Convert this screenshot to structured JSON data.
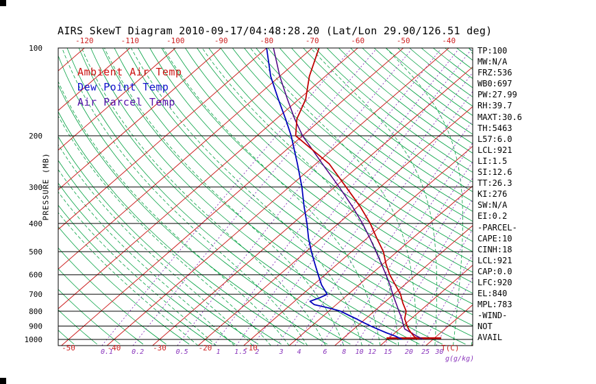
{
  "title": "AIRS SkewT Diagram 2010-09-17/04:48:28.20 (Lat/Lon 29.90/126.51 deg)",
  "axes": {
    "pressure_label": "PRESSURE (MB)",
    "pressure_ticks": [
      100,
      200,
      300,
      400,
      500,
      600,
      700,
      800,
      900,
      1000
    ],
    "top_temp_ticks": [
      -120,
      -110,
      -100,
      -90,
      -80,
      -70,
      -60,
      -50,
      -40
    ],
    "bottom_temp_ticks": [
      -50,
      -40,
      -30,
      -20,
      -10
    ],
    "bottom_temp_unit": "T(C)",
    "mixing_ratio_ticks": [
      0.1,
      0.2,
      0.5,
      1,
      1.5,
      2,
      3,
      4,
      6,
      8,
      10,
      12,
      15,
      20,
      25,
      30
    ],
    "mixing_ratio_unit": "g(g/kg)"
  },
  "legend": [
    {
      "label": "Ambient Air Temp",
      "color": "#cc1111"
    },
    {
      "label": "Dew Point Temp",
      "color": "#1111cc"
    },
    {
      "label": "Air Parcel Temp",
      "color": "#5511aa"
    }
  ],
  "stats": [
    "TP:100",
    "MW:N/A",
    "FRZ:536",
    "WB0:697",
    "PW:27.99",
    "RH:39.7",
    "MAXT:30.6",
    "TH:5463",
    "L57:6.0",
    "LCL:921",
    "LI:1.5",
    "SI:12.6",
    "TT:26.3",
    "KI:276",
    "SW:N/A",
    "EI:0.2",
    "-PARCEL-",
    "CAPE:10",
    "CINH:18",
    "LCL:921",
    "CAP:0.0",
    "LFC:920",
    "EL:840",
    "MPL:783",
    "-WIND-",
    "NOT",
    "AVAIL"
  ],
  "colors": {
    "ambient": "#c00000",
    "dew_point": "#0000bb",
    "parcel": "#4b0082",
    "isotherm": "#cc2020",
    "adiabat": "#00a040",
    "mixing_ratio": "#8833bb",
    "axis": "#000000",
    "background": "#ffffff"
  },
  "chart_data": {
    "type": "line",
    "title": "AIRS SkewT Diagram 2010-09-17/04:48:28.20 (Lat/Lon 29.90/126.51 deg)",
    "x_axis": {
      "label": "T(C)",
      "projection": "skew-t (45 deg isotherms)",
      "top_ticks": [
        -120,
        -110,
        -100,
        -90,
        -80,
        -70,
        -60,
        -50,
        -40
      ],
      "bottom_ticks": [
        -50,
        -40,
        -30,
        -20,
        -10
      ]
    },
    "y_axis": {
      "label": "PRESSURE (MB)",
      "scale": "log",
      "ticks": [
        100,
        200,
        300,
        400,
        500,
        600,
        700,
        800,
        900,
        1000
      ],
      "range": [
        100,
        1050
      ]
    },
    "mixing_ratio_lines_g_per_kg": [
      0.1,
      0.2,
      0.5,
      1,
      1.5,
      2,
      3,
      4,
      6,
      8,
      10,
      12,
      15,
      20,
      25,
      30
    ],
    "surface_line": {
      "pressure": 990,
      "t_min": 19.5,
      "t_max": 31.5
    },
    "series": [
      {
        "name": "Ambient Air Temp",
        "color": "#c00000",
        "points_p_t": [
          [
            1000,
            26.8
          ],
          [
            975,
            25.0
          ],
          [
            950,
            23.6
          ],
          [
            925,
            22.2
          ],
          [
            900,
            21.0
          ],
          [
            850,
            18.6
          ],
          [
            800,
            17.0
          ],
          [
            750,
            14.2
          ],
          [
            700,
            11.5
          ],
          [
            650,
            8.0
          ],
          [
            600,
            4.2
          ],
          [
            550,
            0.6
          ],
          [
            500,
            -3.0
          ],
          [
            450,
            -7.8
          ],
          [
            400,
            -13.0
          ],
          [
            350,
            -19.5
          ],
          [
            300,
            -27.5
          ],
          [
            250,
            -37.0
          ],
          [
            200,
            -51.5
          ],
          [
            175,
            -55.5
          ],
          [
            150,
            -58.5
          ],
          [
            125,
            -63.5
          ],
          [
            100,
            -68.5
          ]
        ]
      },
      {
        "name": "Dew Point Temp",
        "color": "#0000bb",
        "points_p_t": [
          [
            1000,
            23.2
          ],
          [
            975,
            21.0
          ],
          [
            950,
            18.2
          ],
          [
            925,
            15.6
          ],
          [
            900,
            13.0
          ],
          [
            875,
            10.5
          ],
          [
            850,
            8.0
          ],
          [
            825,
            5.3
          ],
          [
            800,
            2.6
          ],
          [
            780,
            -0.8
          ],
          [
            760,
            -4.8
          ],
          [
            740,
            -6.6
          ],
          [
            720,
            -5.4
          ],
          [
            700,
            -4.6
          ],
          [
            650,
            -8.2
          ],
          [
            600,
            -11.5
          ],
          [
            550,
            -15.0
          ],
          [
            500,
            -18.8
          ],
          [
            450,
            -22.8
          ],
          [
            400,
            -26.9
          ],
          [
            350,
            -31.8
          ],
          [
            300,
            -37.2
          ],
          [
            250,
            -44.0
          ],
          [
            200,
            -52.5
          ],
          [
            175,
            -58.0
          ],
          [
            150,
            -64.5
          ],
          [
            125,
            -72.0
          ],
          [
            100,
            -80.0
          ]
        ]
      },
      {
        "name": "Air Parcel Temp",
        "color": "#4b0082",
        "points_p_t": [
          [
            1000,
            27.8
          ],
          [
            975,
            25.7
          ],
          [
            950,
            23.6
          ],
          [
            921,
            21.2
          ],
          [
            900,
            20.2
          ],
          [
            850,
            18.0
          ],
          [
            800,
            15.4
          ],
          [
            750,
            12.7
          ],
          [
            700,
            9.8
          ],
          [
            650,
            6.8
          ],
          [
            600,
            3.4
          ],
          [
            550,
            -0.4
          ],
          [
            500,
            -4.6
          ],
          [
            450,
            -9.3
          ],
          [
            400,
            -14.7
          ],
          [
            350,
            -21.2
          ],
          [
            300,
            -29.0
          ],
          [
            250,
            -38.5
          ],
          [
            200,
            -50.0
          ],
          [
            175,
            -56.0
          ],
          [
            150,
            -62.5
          ],
          [
            125,
            -70.0
          ],
          [
            100,
            -78.5
          ]
        ]
      }
    ]
  }
}
